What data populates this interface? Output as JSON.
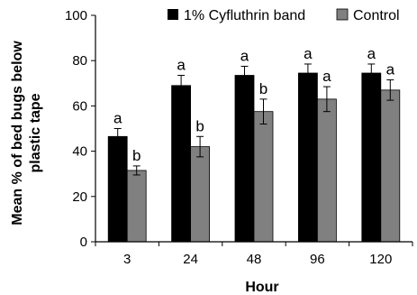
{
  "chart_data": {
    "type": "bar",
    "xlabel": "Hour",
    "ylabel": "Mean % of bed bugs below plastic tape",
    "ylim": [
      0,
      100
    ],
    "yticks": [
      0,
      20,
      40,
      60,
      80,
      100
    ],
    "categories": [
      "3",
      "24",
      "48",
      "96",
      "120"
    ],
    "series": [
      {
        "name": "1% Cyfluthrin band",
        "color": "#000000",
        "values": [
          46.5,
          69,
          73.5,
          74.5,
          74.5
        ],
        "errors": [
          3.5,
          4.5,
          4,
          4,
          4
        ],
        "significance": [
          "a",
          "a",
          "a",
          "a",
          "a"
        ]
      },
      {
        "name": "Control",
        "color": "#808080",
        "values": [
          31.5,
          42,
          57.5,
          63,
          67
        ],
        "errors": [
          2,
          4.5,
          5.5,
          5.5,
          4.5
        ],
        "significance": [
          "b",
          "b",
          "b",
          "a",
          "a"
        ]
      }
    ],
    "legend_position": "top",
    "grid": false
  }
}
